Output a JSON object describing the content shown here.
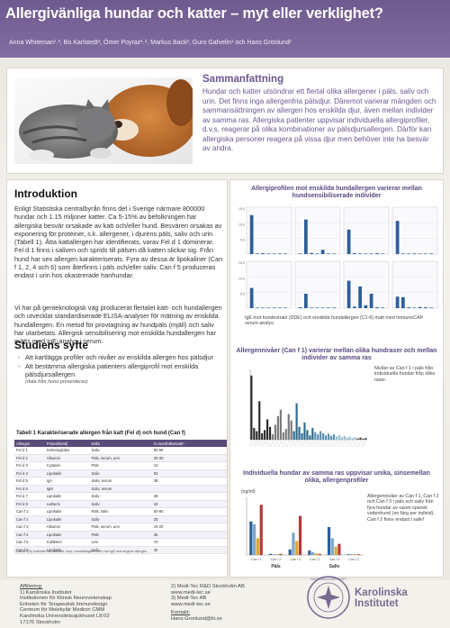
{
  "poster": {
    "title": "Allergivänliga hundar och katter – myt eller verklighet?",
    "authors": "Anna Whiteman¹˒², Bo Karlstedt³, Ömer Poyraz¹˒², Markus Back², Guro Gafvelin¹ och Hans Grönlund¹"
  },
  "summary": {
    "title": "Sammanfattning",
    "text": "Hundar och katter utsöndrar ett flertal olika allergener i päls, saliv och urin. Det finns inga allergenfria pälsdjur. Däremot varierar mängden och sammansättningen av allergen hos enskilda djur, även mellan individer av samma ras. Allergiska patienter uppvisar individuella allergiprofiler, d.v.s. reagerar på olika kombinationer av pälsdjursallergen. Därför kan allergiska personer reagera på vissa djur men behöver inte ha besvär av andra."
  },
  "introduction": {
    "title": "Introduktion",
    "p1": "Enligt Statistiska centralbyrån finns det i Sverige närmare 800000 hundar och 1.15 miljoner katter. Ca 5-15% av befolkningen har allergiska besvär orsakade av katt och/eller hund. Besvären orsakas av exponering för proteiner, s.k. allergener, i djurens päls, saliv och urin (Tabell 1). Åtta kattallergen har identifierats, varav Fel d 1 dominerar. Fel d 1 finns i saliven och sprids till pälsen då katten slickar sig. Från hund har sex allergen karakteriserats. Fyra av dessa är lipokaliner (Can f 1, 2, 4 och 6) som återfinns i päls och/eller saliv. Can f 5 produceras endast i urin hos okastrerade hanhundar.",
    "p2": "Vi har på genteknologisk väg producerat flertalet katt- och hundallergen och utvecklat standardiserade ELISA-analyser för mätning av enskilda hundallergen. En metod för provtagning av hundpäls (mjäll) och saliv har utarbetats. Allergisk sensibilisering mot enskilda hundallergen har mätts med IgE-analys i serum."
  },
  "aims": {
    "title": "Studiens syfte",
    "items": [
      "Att kartlägga profiler och nivåer av enskilda allergen hos pälsdjur",
      "Att bestämma allergiska patienters allergiprofil mot enskilda pälsdjursallergen"
    ],
    "note": "(data från hund presenteras)"
  },
  "table": {
    "caption": "Tabell 1 Karakteriserade allergen från katt (Fel d) och hund (Can f)",
    "headers": [
      "Allergen",
      "Proteinfamilj",
      "Källa",
      "% sensibiliserade*"
    ],
    "rows": [
      [
        "Fel d 1",
        "Sekretoglobin",
        "Saliv",
        "90-95"
      ],
      [
        "Fel d 2",
        "Albumin",
        "Päls, serum, urin",
        "20-30"
      ],
      [
        "Fel d 3",
        "Cystatin",
        "Päls",
        "10"
      ],
      [
        "Fel d 4",
        "Lipokalin",
        "Saliv",
        "63"
      ],
      [
        "Fel d 5",
        "IgA",
        "Saliv, serum",
        "38"
      ],
      [
        "Fel d 6",
        "IgM",
        "Saliv, serum",
        ""
      ],
      [
        "Fel d 7",
        "Lipokalin",
        "Saliv",
        "38"
      ],
      [
        "Fel d 8",
        "Latherin",
        "Saliv",
        "19"
      ],
      [
        "Can f 1",
        "Lipokalin",
        "Päls, saliv",
        "50-90"
      ],
      [
        "Can f 2",
        "Lipokalin",
        "Saliv",
        "20"
      ],
      [
        "Can f 3",
        "Albumin",
        "Päls, serum, urin",
        "10-20"
      ],
      [
        "Can f 4",
        "Lipokalin",
        "Päls",
        "35"
      ],
      [
        "Can f 5",
        "Kallikrein",
        "Urin",
        "70"
      ],
      [
        "Can f 6",
        "Lipokalin",
        "Saliv",
        "40"
      ]
    ],
    "footnote": "*) Andel (%) individer av alla katt- resp. hundallergiker som har IgE mot angivet allergen."
  },
  "chart1": {
    "title": "Allergiprofilen mot enskilda hundallergen varierar mellan hundsensibiliserade individer",
    "note": "IgE mot hundextrakt (DDE) och enskilda hundallergen (C1-6) mätt med ImmunoCAP serum-analys.",
    "bar_color": "#2d5f9a",
    "chart_data": {
      "type": "bar",
      "panels": 8,
      "categories": [
        "DDE",
        "C1",
        "C2",
        "C3",
        "C4",
        "C5",
        "C6"
      ],
      "ytick_labels": [
        "15,0",
        "10,0",
        "5,0",
        ""
      ],
      "series": [
        {
          "values": [
            13.5,
            0.2,
            0.3,
            0.1,
            0.1,
            0.2,
            0.1
          ]
        },
        {
          "values": [
            0.2,
            12.0,
            0.4,
            0.2,
            1.5,
            0.2,
            0.1
          ]
        },
        {
          "values": [
            8.5,
            0.3,
            0.2,
            0.1,
            0.2,
            0.3,
            0.1
          ]
        },
        {
          "values": [
            11.5,
            0.2,
            0.1,
            0.2,
            0.1,
            0.1,
            0.2
          ]
        },
        {
          "values": [
            7.0,
            0.2,
            0.1,
            0.1,
            0.2,
            0.1,
            0.1
          ]
        },
        {
          "values": [
            0.3,
            5.0,
            0.1,
            0.1,
            0.1,
            0.2,
            0.2
          ]
        },
        {
          "values": [
            9.5,
            0.5,
            7.5,
            1.0,
            5.0,
            0.3,
            0.2
          ]
        },
        {
          "values": [
            4.0,
            3.8,
            0.3,
            0.2,
            0.4,
            0.3,
            0.2
          ]
        }
      ]
    }
  },
  "chart2": {
    "title": "Allergennivåer (Can f 1) varierar mellan olika hundraser och mellan individer av samma ras",
    "note": "Nivåer av Can f 1 i päls från individuella hundar från olika raser.",
    "chart_data": {
      "type": "bar",
      "values": [
        300,
        55,
        40,
        180,
        30,
        45,
        95,
        60,
        25,
        70,
        110,
        140,
        35,
        50,
        120,
        90,
        40,
        170,
        60,
        30,
        80,
        45,
        20,
        55,
        35,
        25,
        40,
        30,
        20,
        28,
        18,
        25,
        15,
        22,
        12,
        18,
        10,
        15,
        8,
        12,
        6,
        10,
        5,
        8
      ],
      "colors": [
        "#2a2a2a",
        "#7a7a7a",
        "#2c6a8a",
        "#5a8fb0",
        "#9bbfd4",
        "#444444"
      ]
    }
  },
  "chart3": {
    "title": "Individuella hundar av samma ras uppvisar unika, sinsemellan olika, allergenprofiler",
    "yaxis_label": "(ng/ml)",
    "group_labels": [
      "Päls",
      "Saliv"
    ],
    "note": "Allergennivåer av Can f 1, Can f 2 och Can f 3 i päls och saliv från fyra hundar av rasen spansk vattenhund (en färg per individ). Can f 2 finns endast i saliv!",
    "chart_data": {
      "type": "bar",
      "categories": [
        "Can f 1",
        "Can f 2",
        "Can f 3",
        "Can f 1",
        "Can f 2",
        "Can f 3"
      ],
      "series": [
        {
          "values": [
            60,
            2,
            10,
            8,
            50,
            1
          ]
        },
        {
          "values": [
            55,
            1,
            40,
            5,
            30,
            1
          ]
        },
        {
          "values": [
            30,
            1,
            25,
            3,
            15,
            1
          ]
        },
        {
          "values": [
            90,
            2,
            70,
            2,
            20,
            1
          ]
        }
      ],
      "colors": [
        "#2d5f9a",
        "#7aa8cf",
        "#e0a72a",
        "#b23b3b"
      ]
    }
  },
  "footer": {
    "aff_label": "Affiliering:",
    "aff": [
      "1) Karolinska Institutet",
      "Institutionen för Klinisk Neurovetenskap",
      "Enheten för Terapeutisk Immundesign",
      "Centrum för Molekylär Medicin CMM",
      "Karolinska Universitetssjukhuset L8:02",
      "17176 Stockholm"
    ],
    "mid": [
      "2) Medi-Tec R&D Stockholm AB",
      "www.medi-tec.se",
      "3) Medi-Tec AB",
      "www.medi-tec.se"
    ],
    "contact_label": "Kontakt:",
    "contact": "Hans.Gronlund@ki.se",
    "institute": [
      "Karolinska",
      "Institutet"
    ],
    "seal_text": "KAROLINSKA INSTITUTET"
  }
}
